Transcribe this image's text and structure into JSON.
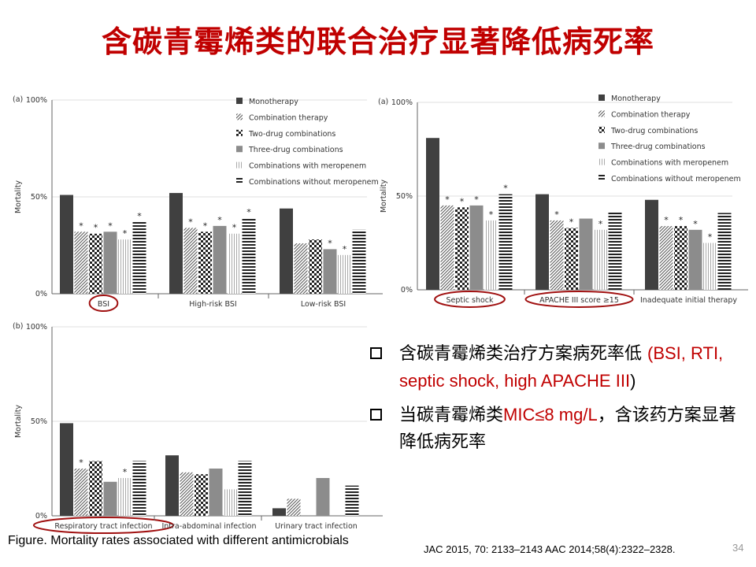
{
  "title": "含碳青霉烯类的联合治疗显著降低病死率",
  "colors": {
    "title": "#c00000",
    "monotherapy": "#404040",
    "three_drug": "#8c8c8c",
    "highlight_oval": "#a01010"
  },
  "chart_data": [
    {
      "type": "bar",
      "panel": "(a)",
      "ylabel": "Mortality",
      "y_ticks": [
        "0%",
        "50%",
        "100%"
      ],
      "ylim": [
        0,
        100
      ],
      "categories": [
        "BSI",
        "High-risk BSI",
        "Low-risk BSI"
      ],
      "highlighted_categories": [
        "BSI"
      ],
      "legend": null,
      "series": [
        {
          "name": "Monotherapy",
          "pattern": "solid-dark",
          "values": [
            51,
            52,
            44
          ],
          "significant": [
            false,
            false,
            false
          ]
        },
        {
          "name": "Combination therapy",
          "pattern": "diag",
          "values": [
            32,
            34,
            26
          ],
          "significant": [
            true,
            true,
            false
          ]
        },
        {
          "name": "Two-drug combinations",
          "pattern": "checker",
          "values": [
            31,
            32,
            28
          ],
          "significant": [
            true,
            true,
            false
          ]
        },
        {
          "name": "Three-drug combinations",
          "pattern": "solid-gray",
          "values": [
            32,
            35,
            23
          ],
          "significant": [
            true,
            true,
            true
          ]
        },
        {
          "name": "Combinations with meropenem",
          "pattern": "vert",
          "values": [
            28,
            31,
            20
          ],
          "significant": [
            true,
            true,
            true
          ]
        },
        {
          "name": "Combinations without meropenem",
          "pattern": "horiz",
          "values": [
            37,
            39,
            33
          ],
          "significant": [
            true,
            true,
            false
          ]
        }
      ]
    },
    {
      "type": "bar",
      "panel": "(a)",
      "ylabel": "Mortality",
      "y_ticks": [
        "0%",
        "50%",
        "100%"
      ],
      "ylim": [
        0,
        100
      ],
      "categories": [
        "Septic shock",
        "APACHE III score ≥15",
        "Inadequate initial therapy"
      ],
      "highlighted_categories": [
        "Septic shock",
        "APACHE III score ≥15"
      ],
      "legend": [
        "Monotherapy",
        "Combination therapy",
        "Two-drug combinations",
        "Three-drug combinations",
        "Combinations with meropenem",
        "Combinations without meropenem"
      ],
      "series": [
        {
          "name": "Monotherapy",
          "pattern": "solid-dark",
          "values": [
            81,
            51,
            48
          ],
          "significant": [
            false,
            false,
            false
          ]
        },
        {
          "name": "Combination therapy",
          "pattern": "diag",
          "values": [
            45,
            37,
            34
          ],
          "significant": [
            true,
            true,
            true
          ]
        },
        {
          "name": "Two-drug combinations",
          "pattern": "checker",
          "values": [
            44,
            33,
            34
          ],
          "significant": [
            true,
            true,
            true
          ]
        },
        {
          "name": "Three-drug combinations",
          "pattern": "solid-gray",
          "values": [
            45,
            38,
            32
          ],
          "significant": [
            true,
            false,
            true
          ]
        },
        {
          "name": "Combinations with meropenem",
          "pattern": "vert",
          "values": [
            37,
            32,
            25
          ],
          "significant": [
            true,
            true,
            true
          ]
        },
        {
          "name": "Combinations without meropenem",
          "pattern": "horiz",
          "values": [
            51,
            42,
            41
          ],
          "significant": [
            true,
            false,
            false
          ]
        }
      ]
    },
    {
      "type": "bar",
      "panel": "(b)",
      "ylabel": "Mortality",
      "y_ticks": [
        "0%",
        "50%",
        "100%"
      ],
      "ylim": [
        0,
        100
      ],
      "categories": [
        "Respiratory tract infection",
        "Intra-abdominal infection",
        "Urinary tract infection"
      ],
      "highlighted_categories": [
        "Respiratory tract infection"
      ],
      "legend": null,
      "series": [
        {
          "name": "Monotherapy",
          "pattern": "solid-dark",
          "values": [
            49,
            32,
            4
          ],
          "significant": [
            false,
            false,
            false
          ]
        },
        {
          "name": "Combination therapy",
          "pattern": "diag",
          "values": [
            25,
            23,
            9
          ],
          "significant": [
            true,
            false,
            false
          ]
        },
        {
          "name": "Two-drug combinations",
          "pattern": "checker",
          "values": [
            29,
            22,
            0
          ],
          "significant": [
            false,
            false,
            false
          ]
        },
        {
          "name": "Three-drug combinations",
          "pattern": "solid-gray",
          "values": [
            18,
            25,
            20
          ],
          "significant": [
            false,
            false,
            false
          ]
        },
        {
          "name": "Combinations with meropenem",
          "pattern": "vert",
          "values": [
            20,
            14,
            0
          ],
          "significant": [
            true,
            false,
            false
          ]
        },
        {
          "name": "Combinations without meropenem",
          "pattern": "horiz",
          "values": [
            29,
            29,
            16
          ],
          "significant": [
            false,
            false,
            false
          ]
        }
      ]
    }
  ],
  "bullets": [
    {
      "zh": "含碳青霉烯类治疗方案病死率低 ",
      "red": "(BSI, RTI, septic shock, high APACHE III",
      "tail": ")"
    },
    {
      "zh": "当碳青霉烯类",
      "red": "MIC≤8 mg/L",
      "tail": "，含该药方案显著降低病死率"
    }
  ],
  "caption": "Figure. Mortality rates associated with different antimicrobials",
  "references": "JAC 2015, 70: 2133–2143 AAC 2014;58(4):2322–2328.",
  "page_number": "34"
}
